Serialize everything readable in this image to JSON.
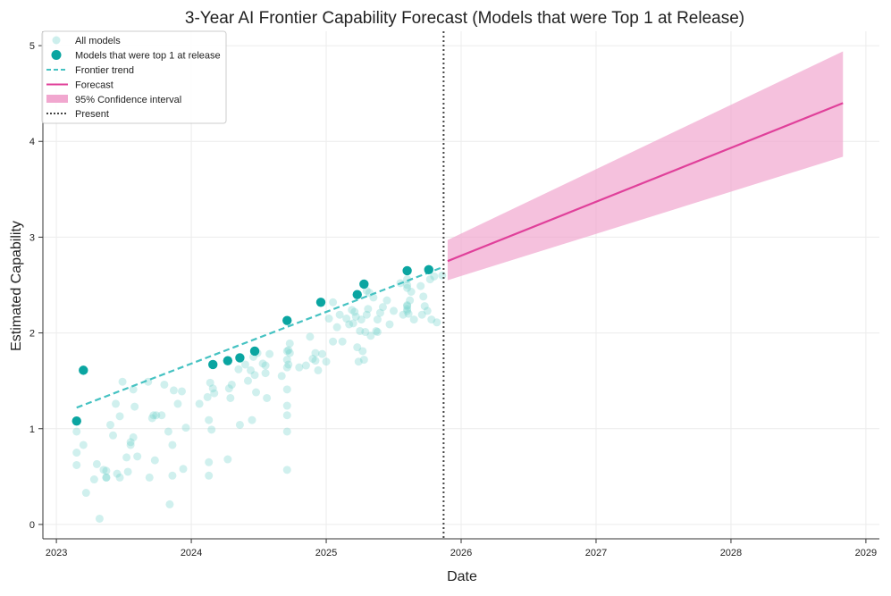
{
  "chart_data": {
    "type": "scatter",
    "title": "3-Year AI Frontier Capability Forecast (Models that were Top 1 at Release)",
    "xlabel": "Date",
    "ylabel": "Estimated Capability",
    "xlim": [
      2022.9,
      2029.1
    ],
    "ylim": [
      -0.15,
      5.15
    ],
    "xticks": [
      2023,
      2024,
      2025,
      2026,
      2027,
      2028,
      2029
    ],
    "xtick_labels": [
      "2023",
      "2024",
      "2025",
      "2026",
      "2027",
      "2028",
      "2029"
    ],
    "yticks": [
      0,
      1,
      2,
      3,
      4,
      5
    ],
    "ytick_labels": [
      "0",
      "1",
      "2",
      "3",
      "4",
      "5"
    ],
    "grid": true,
    "present_x": 2025.87,
    "legend": {
      "position": "top-left",
      "entries": [
        {
          "key": "all",
          "label": "All models"
        },
        {
          "key": "top",
          "label": "Models that were top 1 at release"
        },
        {
          "key": "trend",
          "label": "Frontier trend"
        },
        {
          "key": "forecast",
          "label": "Forecast"
        },
        {
          "key": "ci",
          "label": "95% Confidence interval"
        },
        {
          "key": "present",
          "label": "Present"
        }
      ]
    },
    "colors": {
      "all_models": "#6fd0cc",
      "top_models": "#0aa5a1",
      "trend": "#45c2c2",
      "forecast": "#e0409a",
      "ci": "#f1a7cf",
      "present": "#444444",
      "grid": "#ececec"
    },
    "series": [
      {
        "name": "All models",
        "x": [
          2023.15,
          2023.15,
          2023.15,
          2023.2,
          2023.22,
          2023.28,
          2023.3,
          2023.32,
          2023.35,
          2023.37,
          2023.37,
          2023.37,
          2023.4,
          2023.42,
          2023.44,
          2023.45,
          2023.47,
          2023.47,
          2023.49,
          2023.52,
          2023.53,
          2023.55,
          2023.55,
          2023.57,
          2023.57,
          2023.58,
          2023.6,
          2023.68,
          2023.69,
          2023.71,
          2023.72,
          2023.73,
          2023.74,
          2023.78,
          2023.8,
          2023.83,
          2023.84,
          2023.86,
          2023.86,
          2023.87,
          2023.9,
          2023.93,
          2023.94,
          2023.96,
          2024.06,
          2024.12,
          2024.13,
          2024.13,
          2024.13,
          2024.14,
          2024.15,
          2024.16,
          2024.17,
          2024.27,
          2024.28,
          2024.29,
          2024.3,
          2024.35,
          2024.36,
          2024.4,
          2024.42,
          2024.44,
          2024.45,
          2024.46,
          2024.47,
          2024.48,
          2024.49,
          2024.53,
          2024.55,
          2024.55,
          2024.56,
          2024.58,
          2024.67,
          2024.71,
          2024.71,
          2024.71,
          2024.71,
          2024.71,
          2024.71,
          2024.71,
          2024.71,
          2024.72,
          2024.72,
          2024.73,
          2024.73,
          2024.8,
          2024.85,
          2024.88,
          2024.9,
          2024.92,
          2024.92,
          2024.94,
          2024.97,
          2025.0,
          2025.02,
          2025.05,
          2025.05,
          2025.08,
          2025.1,
          2025.12,
          2025.15,
          2025.17,
          2025.19,
          2025.2,
          2025.21,
          2025.22,
          2025.23,
          2025.24,
          2025.25,
          2025.26,
          2025.27,
          2025.28,
          2025.29,
          2025.3,
          2025.3,
          2025.31,
          2025.32,
          2025.33,
          2025.35,
          2025.37,
          2025.38,
          2025.38,
          2025.4,
          2025.42,
          2025.45,
          2025.47,
          2025.5,
          2025.55,
          2025.57,
          2025.6,
          2025.6,
          2025.6,
          2025.6,
          2025.6,
          2025.6,
          2025.6,
          2025.61,
          2025.62,
          2025.63,
          2025.65,
          2025.7,
          2025.71,
          2025.72,
          2025.73,
          2025.75,
          2025.77,
          2025.78,
          2025.8,
          2025.82,
          2025.86
        ],
        "y": [
          0.97,
          0.75,
          0.62,
          0.83,
          0.33,
          0.47,
          0.63,
          0.06,
          0.57,
          0.49,
          0.56,
          0.49,
          1.04,
          0.93,
          1.26,
          0.53,
          0.49,
          1.13,
          1.49,
          0.7,
          0.55,
          0.86,
          0.83,
          0.91,
          1.41,
          1.23,
          0.71,
          1.49,
          0.49,
          1.11,
          1.14,
          0.67,
          1.14,
          1.14,
          1.46,
          0.97,
          0.21,
          0.51,
          0.83,
          1.4,
          1.26,
          1.39,
          0.58,
          1.01,
          1.26,
          1.33,
          0.51,
          0.65,
          1.09,
          1.48,
          0.99,
          1.42,
          1.37,
          0.68,
          1.42,
          1.32,
          1.46,
          1.62,
          1.04,
          1.67,
          1.5,
          1.61,
          1.09,
          1.75,
          1.56,
          1.38,
          1.79,
          1.68,
          1.58,
          1.66,
          1.32,
          1.78,
          1.55,
          0.57,
          0.97,
          1.14,
          1.24,
          1.41,
          1.64,
          1.72,
          1.81,
          1.67,
          1.82,
          1.79,
          1.89,
          1.64,
          1.66,
          1.96,
          1.73,
          1.71,
          1.79,
          1.61,
          1.78,
          1.7,
          2.15,
          1.91,
          2.32,
          2.06,
          2.19,
          1.91,
          2.15,
          2.09,
          2.24,
          2.1,
          2.22,
          2.17,
          1.85,
          1.7,
          2.02,
          2.14,
          1.81,
          1.72,
          2.01,
          2.19,
          2.44,
          2.25,
          2.42,
          1.97,
          2.37,
          2.02,
          2.14,
          2.01,
          2.21,
          2.27,
          2.34,
          2.09,
          2.23,
          2.52,
          2.19,
          2.5,
          2.28,
          2.29,
          2.23,
          2.56,
          2.47,
          2.25,
          2.2,
          2.34,
          2.43,
          2.14,
          2.49,
          2.19,
          2.38,
          2.28,
          2.23,
          2.56,
          2.14,
          2.59,
          2.11,
          2.6
        ]
      },
      {
        "name": "Models that were top 1 at release",
        "x": [
          2023.15,
          2023.2,
          2024.16,
          2024.27,
          2024.36,
          2024.47,
          2024.71,
          2024.96,
          2025.23,
          2025.28,
          2025.6,
          2025.76
        ],
        "y": [
          1.08,
          1.61,
          1.67,
          1.71,
          1.74,
          1.81,
          2.13,
          2.32,
          2.4,
          2.51,
          2.65,
          2.66
        ]
      },
      {
        "name": "Frontier trend",
        "x": [
          2023.15,
          2025.87
        ],
        "y": [
          1.22,
          2.69
        ]
      },
      {
        "name": "Forecast",
        "x": [
          2025.9,
          2028.83
        ],
        "y": [
          2.75,
          4.4
        ]
      },
      {
        "name": "95% Confidence interval",
        "x": [
          2025.9,
          2028.83
        ],
        "upper": [
          2.97,
          4.94
        ],
        "lower": [
          2.55,
          3.84
        ]
      }
    ]
  }
}
